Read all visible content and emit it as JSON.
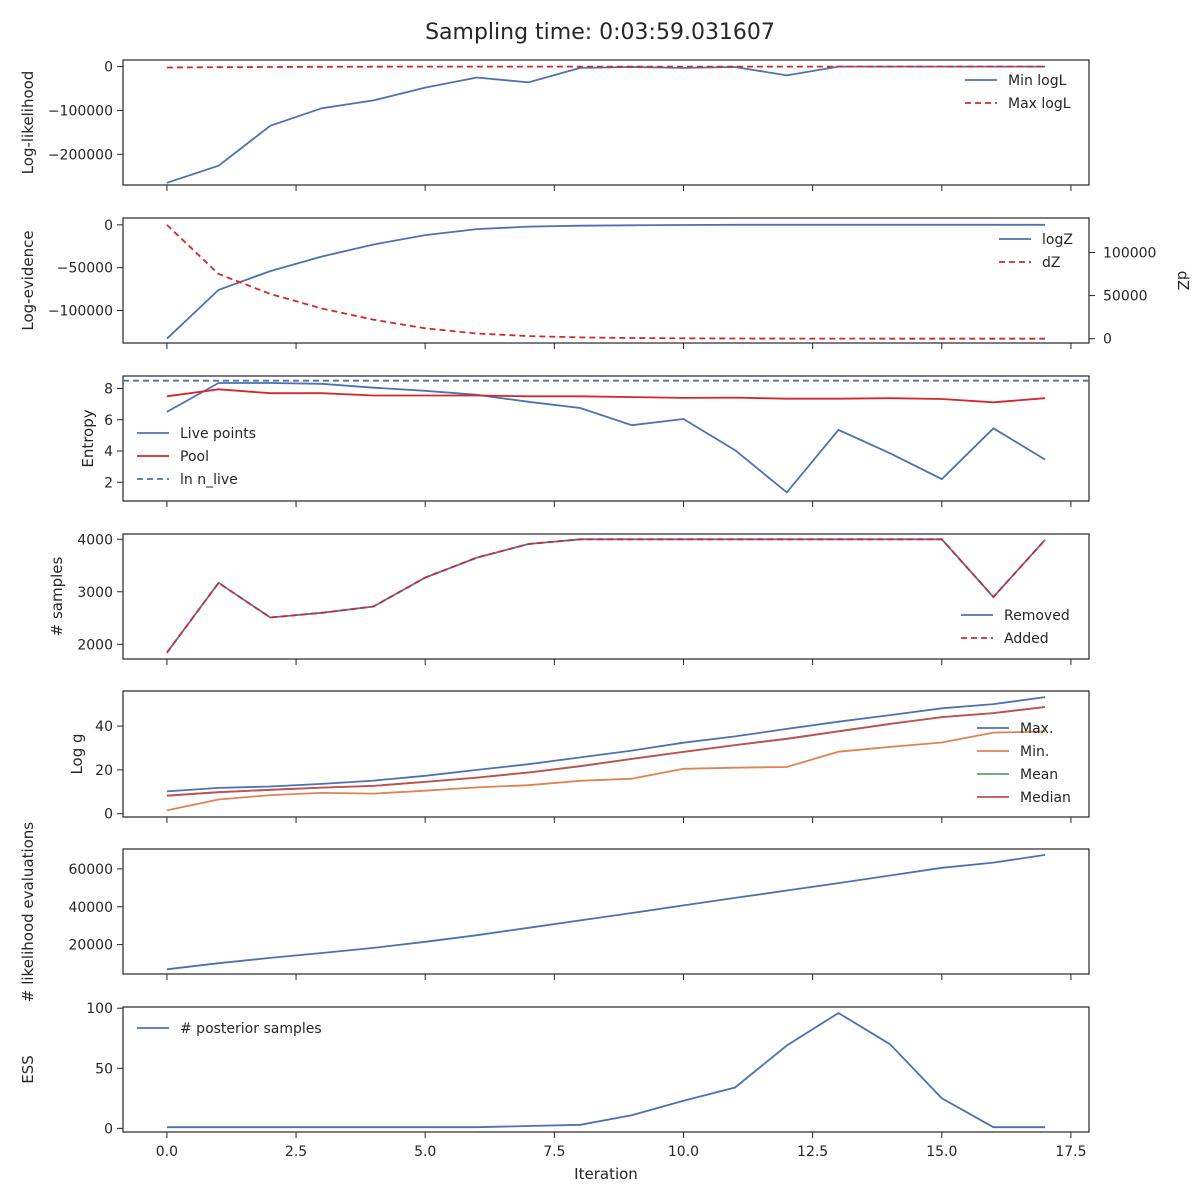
{
  "figure": {
    "title": "Sampling time: 0:03:59.031607"
  },
  "colors": {
    "blue": "#4c72b0",
    "red": "#d62728",
    "orange": "#dd8452",
    "green": "#55a868",
    "median": "#c44e52"
  },
  "chart_data": [
    {
      "type": "line",
      "ylabel": "Log-likelihood",
      "xlim": [
        -0.85,
        17.85
      ],
      "ylim": [
        -270000,
        15000
      ],
      "yticks": [
        0,
        -100000,
        -200000
      ],
      "yticklabels": [
        "0",
        "−100000",
        "−200000"
      ],
      "legend": "upper right",
      "series": [
        {
          "name": "Min logL",
          "color": "#4c72b0",
          "dash": false,
          "x": [
            0,
            1,
            2,
            3,
            4,
            5,
            6,
            7,
            8,
            9,
            10,
            11,
            12,
            13,
            14,
            15,
            16,
            17
          ],
          "y": [
            -265000,
            -226000,
            -135000,
            -95000,
            -77000,
            -48000,
            -25000,
            -36000,
            -3000,
            -1000,
            -3000,
            -1000,
            -20000,
            0,
            0,
            0,
            0,
            0
          ]
        },
        {
          "name": "Max logL",
          "color": "#d62728",
          "dash": true,
          "x": [
            0,
            1,
            2,
            3,
            4,
            5,
            6,
            7,
            8,
            9,
            10,
            11,
            12,
            13,
            14,
            15,
            16,
            17
          ],
          "y": [
            -2000,
            -1500,
            -1000,
            -500,
            -200,
            0,
            0,
            0,
            0,
            0,
            0,
            0,
            0,
            0,
            0,
            0,
            0,
            0
          ]
        }
      ]
    },
    {
      "type": "line",
      "ylabel": "Log-evidence",
      "ylabel2": "dZ",
      "xlim": [
        -0.85,
        17.85
      ],
      "ylim": [
        -138000,
        8000
      ],
      "yticks": [
        0,
        -50000,
        -100000
      ],
      "yticklabels": [
        "0",
        "−50000",
        "−100000"
      ],
      "y2lim": [
        -5000,
        140000
      ],
      "y2ticks": [
        0,
        50000,
        100000
      ],
      "y2ticklabels": [
        "0",
        "50000",
        "100000"
      ],
      "legend": "upper right",
      "series": [
        {
          "name": "logZ",
          "color": "#4c72b0",
          "dash": false,
          "axis": "left",
          "x": [
            0,
            1,
            2,
            3,
            4,
            5,
            6,
            7,
            8,
            9,
            10,
            11,
            12,
            13,
            14,
            15,
            16,
            17
          ],
          "y": [
            -133000,
            -76000,
            -54000,
            -37000,
            -23000,
            -12000,
            -5000,
            -2000,
            -1000,
            -500,
            -200,
            0,
            0,
            0,
            0,
            0,
            0,
            0
          ]
        },
        {
          "name": "dZ",
          "color": "#d62728",
          "dash": true,
          "axis": "right",
          "x": [
            0,
            1,
            2,
            3,
            4,
            5,
            6,
            7,
            8,
            9,
            10,
            11,
            12,
            13,
            14,
            15,
            16,
            17
          ],
          "y": [
            132000,
            75000,
            52000,
            35000,
            22000,
            12000,
            6000,
            3000,
            1500,
            800,
            400,
            200,
            100,
            50,
            20,
            10,
            5,
            0
          ]
        }
      ]
    },
    {
      "type": "line",
      "ylabel": "Entropy",
      "xlim": [
        -0.85,
        17.85
      ],
      "ylim": [
        0.8,
        8.8
      ],
      "yticks": [
        2,
        4,
        6,
        8
      ],
      "yticklabels": [
        "2",
        "4",
        "6",
        "8"
      ],
      "legend": "center left",
      "series": [
        {
          "name": "Live points",
          "color": "#4c72b0",
          "dash": false,
          "x": [
            0,
            1,
            2,
            3,
            4,
            5,
            6,
            7,
            8,
            9,
            10,
            11,
            12,
            13,
            14,
            15,
            16,
            17
          ],
          "y": [
            6.5,
            8.35,
            8.35,
            8.3,
            8.05,
            7.85,
            7.6,
            7.15,
            6.75,
            5.65,
            6.05,
            4.05,
            1.35,
            5.35,
            3.85,
            2.2,
            5.45,
            3.45
          ]
        },
        {
          "name": "Pool",
          "color": "#d62728",
          "dash": false,
          "x": [
            0,
            1,
            2,
            3,
            4,
            5,
            6,
            7,
            8,
            9,
            10,
            11,
            12,
            13,
            14,
            15,
            16,
            17
          ],
          "y": [
            7.5,
            7.95,
            7.7,
            7.7,
            7.55,
            7.55,
            7.55,
            7.5,
            7.5,
            7.45,
            7.4,
            7.42,
            7.35,
            7.35,
            7.38,
            7.33,
            7.12,
            7.38
          ]
        },
        {
          "name": "ln n_live",
          "color": "#4c72b0",
          "dash": true,
          "hline": 8.5
        }
      ]
    },
    {
      "type": "line",
      "ylabel": "# samples",
      "xlim": [
        -0.85,
        17.85
      ],
      "ylim": [
        1720,
        4100
      ],
      "yticks": [
        2000,
        3000,
        4000
      ],
      "yticklabels": [
        "2000",
        "3000",
        "4000"
      ],
      "legend": "lower right",
      "series": [
        {
          "name": "Removed",
          "color": "#4c72b0",
          "dash": false,
          "x": [
            0,
            1,
            2,
            3,
            4,
            5,
            6,
            7,
            8,
            9,
            10,
            11,
            12,
            13,
            14,
            15,
            16,
            17
          ],
          "y": [
            1840,
            3170,
            2510,
            2600,
            2720,
            3270,
            3650,
            3910,
            4000,
            4000,
            4000,
            4000,
            4000,
            4000,
            4000,
            4000,
            2900,
            3990
          ]
        },
        {
          "name": "Added",
          "color": "#d62728",
          "dash": true,
          "x": [
            0,
            1,
            2,
            3,
            4,
            5,
            6,
            7,
            8,
            9,
            10,
            11,
            12,
            13,
            14,
            15,
            16,
            17
          ],
          "y": [
            1840,
            3170,
            2510,
            2600,
            2720,
            3270,
            3650,
            3910,
            4000,
            4000,
            4000,
            4000,
            4000,
            4000,
            4000,
            4000,
            2900,
            3990
          ]
        }
      ]
    },
    {
      "type": "line",
      "ylabel": "Log g",
      "xlim": [
        -0.85,
        17.85
      ],
      "ylim": [
        -1.5,
        56
      ],
      "yticks": [
        0,
        20,
        40
      ],
      "yticklabels": [
        "0",
        "20",
        "40"
      ],
      "legend": "center right",
      "series": [
        {
          "name": "Max.",
          "color": "#4c72b0",
          "dash": false,
          "x": [
            0,
            1,
            2,
            3,
            4,
            5,
            6,
            7,
            8,
            9,
            10,
            11,
            12,
            13,
            14,
            15,
            16,
            17
          ],
          "y": [
            10.2,
            11.8,
            12.4,
            13.6,
            15.1,
            17.3,
            20,
            22.6,
            25.7,
            28.8,
            32.4,
            35.3,
            38.7,
            42,
            45,
            48.1,
            50,
            53.2
          ]
        },
        {
          "name": "Min.",
          "color": "#dd8452",
          "dash": false,
          "x": [
            0,
            1,
            2,
            3,
            4,
            5,
            6,
            7,
            8,
            9,
            10,
            11,
            12,
            13,
            14,
            15,
            16,
            17
          ],
          "y": [
            1.5,
            6.5,
            8.5,
            9.5,
            9.2,
            10.5,
            12,
            13,
            15,
            16,
            20.5,
            21,
            21.3,
            28.3,
            30.5,
            32.5,
            37,
            37.5
          ]
        },
        {
          "name": "Mean",
          "color": "#55a868",
          "dash": false,
          "x": [
            0,
            1,
            2,
            3,
            4,
            5,
            6,
            7,
            8,
            9,
            10,
            11,
            12,
            13,
            14,
            15,
            16,
            17
          ],
          "y": [
            8.2,
            9.8,
            10.9,
            11.9,
            12.7,
            14.5,
            16.5,
            18.8,
            21.7,
            25,
            28.2,
            31.3,
            34.2,
            37.6,
            41,
            44.1,
            45.9,
            48.7
          ]
        },
        {
          "name": "Median",
          "color": "#c44e52",
          "dash": false,
          "x": [
            0,
            1,
            2,
            3,
            4,
            5,
            6,
            7,
            8,
            9,
            10,
            11,
            12,
            13,
            14,
            15,
            16,
            17
          ],
          "y": [
            8.2,
            9.8,
            10.9,
            11.9,
            12.7,
            14.5,
            16.5,
            18.8,
            21.7,
            25,
            28.2,
            31.3,
            34.2,
            37.6,
            41,
            44.1,
            45.9,
            48.7
          ]
        }
      ]
    },
    {
      "type": "line",
      "ylabel": "# likelihood evaluations",
      "xlim": [
        -0.85,
        17.85
      ],
      "ylim": [
        4500,
        70500
      ],
      "yticks": [
        20000,
        40000,
        60000
      ],
      "yticklabels": [
        "20000",
        "40000",
        "60000"
      ],
      "legend": "none",
      "series": [
        {
          "name": "",
          "color": "#4c72b0",
          "dash": false,
          "x": [
            0,
            1,
            2,
            3,
            4,
            5,
            6,
            7,
            8,
            9,
            10,
            11,
            12,
            13,
            14,
            15,
            16,
            17
          ],
          "y": [
            7000,
            10200,
            13000,
            15600,
            18300,
            21500,
            25000,
            28900,
            32800,
            36700,
            40700,
            44700,
            48600,
            52500,
            56500,
            60600,
            63300,
            67400
          ]
        }
      ]
    },
    {
      "type": "line",
      "ylabel": "ESS",
      "xlim": [
        -0.85,
        17.85
      ],
      "ylim": [
        -3,
        101
      ],
      "yticks": [
        0,
        50,
        100
      ],
      "yticklabels": [
        "0",
        "50",
        "100"
      ],
      "xlabel": "Iteration",
      "xticks": [
        0,
        2.5,
        5,
        7.5,
        10,
        12.5,
        15,
        17.5
      ],
      "xticklabels": [
        "0.0",
        "2.5",
        "5.0",
        "7.5",
        "10.0",
        "12.5",
        "15.0",
        "17.5"
      ],
      "legend": "upper left",
      "series": [
        {
          "name": "# posterior samples",
          "color": "#4c72b0",
          "dash": false,
          "x": [
            0,
            1,
            2,
            3,
            4,
            5,
            6,
            7,
            8,
            9,
            10,
            11,
            12,
            13,
            14,
            15,
            16,
            17
          ],
          "y": [
            1,
            1,
            1,
            1,
            1,
            1,
            1,
            2,
            3,
            11,
            23,
            34,
            69,
            96,
            70,
            25,
            1,
            1
          ]
        }
      ]
    }
  ]
}
